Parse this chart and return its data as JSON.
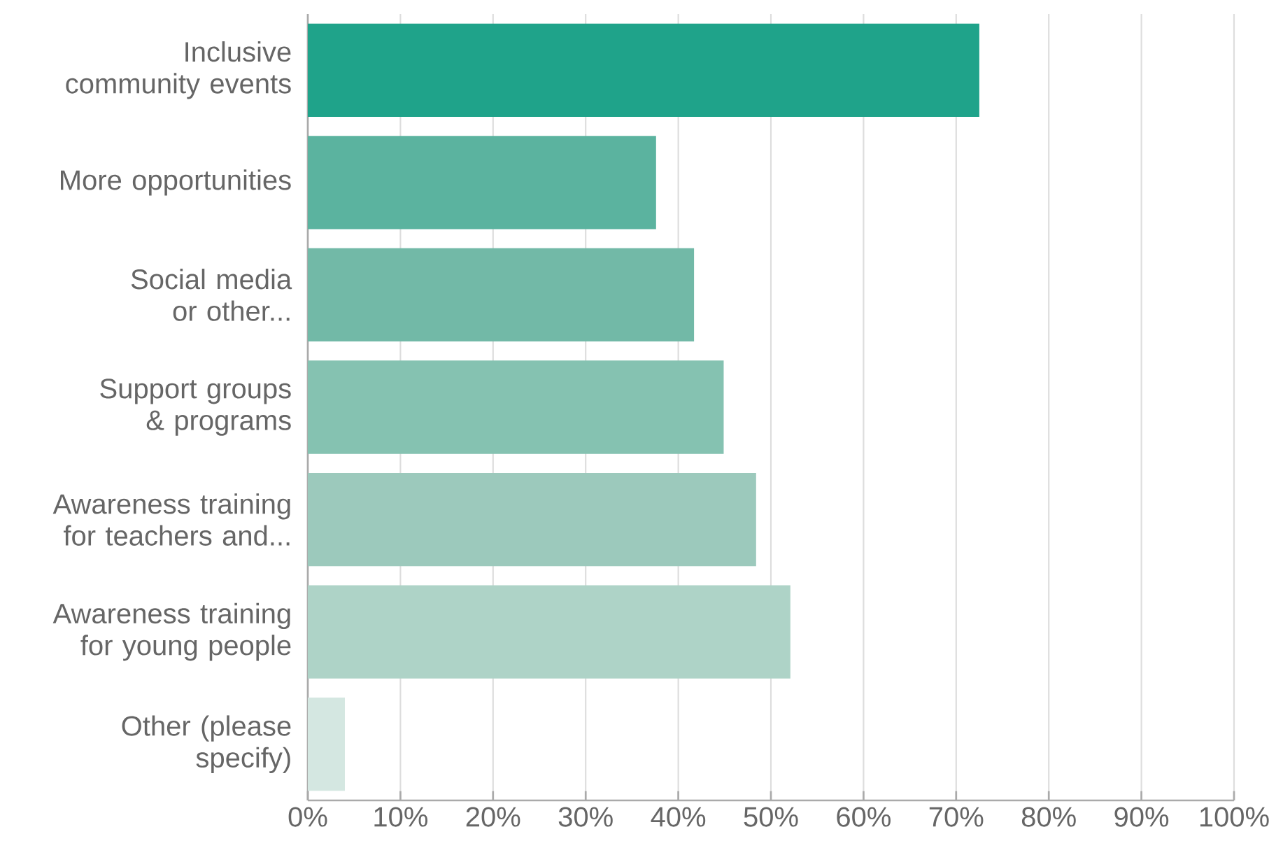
{
  "chart_data": {
    "type": "bar",
    "orientation": "horizontal",
    "categories": [
      "Inclusive community events",
      "More opportunities",
      "Social media or other...",
      "Support groups & programs",
      "Awareness training for teachers and...",
      "Awareness training for young people",
      "Other (please specify)"
    ],
    "values": [
      72.5,
      37.6,
      41.7,
      44.9,
      48.4,
      52.1,
      4.0
    ],
    "colors": [
      "#1fa38a",
      "#5bb39f",
      "#72b9a7",
      "#85c2b1",
      "#9cc9bc",
      "#aed3c7",
      "#d4e7e1"
    ],
    "xlim": [
      0,
      100
    ],
    "xticks": [
      {
        "value": 0,
        "label": "0%"
      },
      {
        "value": 10,
        "label": "10%"
      },
      {
        "value": 20,
        "label": "20%"
      },
      {
        "value": 30,
        "label": "30%"
      },
      {
        "value": 40,
        "label": "40%"
      },
      {
        "value": 50,
        "label": "50%"
      },
      {
        "value": 60,
        "label": "60%"
      },
      {
        "value": 70,
        "label": "70%"
      },
      {
        "value": 80,
        "label": "80%"
      },
      {
        "value": 90,
        "label": "90%"
      },
      {
        "value": 100,
        "label": "100%"
      }
    ],
    "grid": "x"
  }
}
